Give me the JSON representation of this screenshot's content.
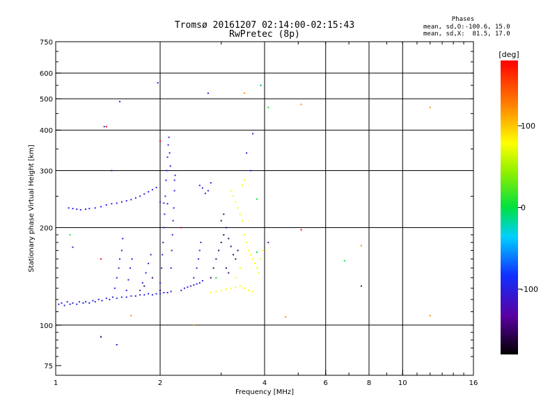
{
  "header": {
    "title_line1": "Tromsø 20161207 02:14:00-02:15:43",
    "title_line2": "RwPretec (8p)"
  },
  "phases_box": {
    "heading": "Phases",
    "stat_o": "mean, sd,O:-100.6, 15.0",
    "stat_x": "mean, sd,X:  81.5, 17.0"
  },
  "chart_data": {
    "type": "scatter",
    "xlabel": "Frequency [MHz]",
    "ylabel": "Stationary phase Virtual Height [km]",
    "x_scale": "log",
    "y_scale": "log",
    "xlim": [
      1,
      16
    ],
    "ylim": [
      70,
      750
    ],
    "x_ticks": [
      1,
      2,
      4,
      6,
      8,
      10,
      16
    ],
    "x_tick_labels": [
      "1",
      "2",
      "4",
      "6",
      "8",
      "10",
      "16"
    ],
    "x_grid_lines": [
      2,
      4,
      6,
      8,
      10
    ],
    "y_ticks": [
      75,
      100,
      200,
      300,
      400,
      500,
      600,
      750
    ],
    "y_tick_labels": [
      "75",
      "100",
      "200",
      "300",
      "400",
      "500",
      "600",
      "750"
    ],
    "y_grid_lines": [
      100,
      200,
      300,
      400,
      500,
      600
    ],
    "grid": true,
    "colorbar": {
      "label": "[deg]",
      "range": [
        -180,
        180
      ],
      "ticks": [
        100,
        0,
        -100
      ],
      "tick_labels": [
        "100",
        "0",
        "-100"
      ]
    },
    "series": [
      {
        "color_phase": -100,
        "points": [
          [
            1.02,
            116
          ],
          [
            1.04,
            117
          ],
          [
            1.06,
            115
          ],
          [
            1.08,
            118
          ],
          [
            1.1,
            116
          ],
          [
            1.12,
            117
          ],
          [
            1.15,
            116
          ],
          [
            1.17,
            118
          ],
          [
            1.2,
            117
          ],
          [
            1.22,
            118
          ],
          [
            1.25,
            117
          ],
          [
            1.28,
            119
          ],
          [
            1.3,
            118
          ],
          [
            1.33,
            120
          ],
          [
            1.36,
            119
          ],
          [
            1.4,
            121
          ],
          [
            1.43,
            120
          ],
          [
            1.46,
            122
          ],
          [
            1.5,
            121
          ],
          [
            1.55,
            122
          ],
          [
            1.6,
            122
          ],
          [
            1.65,
            123
          ],
          [
            1.7,
            123
          ],
          [
            1.75,
            124
          ],
          [
            1.8,
            124
          ],
          [
            1.85,
            125
          ],
          [
            1.9,
            124
          ],
          [
            1.95,
            125
          ],
          [
            2.0,
            125
          ],
          [
            2.05,
            126
          ],
          [
            2.1,
            126
          ],
          [
            2.15,
            127
          ],
          [
            1.09,
            230
          ],
          [
            1.12,
            229
          ],
          [
            1.15,
            228
          ],
          [
            1.18,
            227
          ],
          [
            1.22,
            228
          ],
          [
            1.25,
            229
          ],
          [
            1.3,
            230
          ],
          [
            1.35,
            232
          ],
          [
            1.4,
            235
          ],
          [
            1.45,
            237
          ],
          [
            1.5,
            238
          ],
          [
            1.55,
            240
          ],
          [
            1.6,
            242
          ],
          [
            1.65,
            244
          ],
          [
            1.7,
            247
          ],
          [
            1.75,
            250
          ],
          [
            1.8,
            254
          ],
          [
            1.85,
            258
          ],
          [
            1.9,
            262
          ],
          [
            1.95,
            266
          ],
          [
            2.0,
            240
          ],
          [
            2.05,
            238
          ],
          [
            2.1,
            237
          ],
          [
            1.48,
            130
          ],
          [
            1.5,
            140
          ],
          [
            1.52,
            150
          ],
          [
            1.53,
            160
          ],
          [
            1.55,
            170
          ],
          [
            1.56,
            185
          ],
          [
            1.6,
            128
          ],
          [
            1.62,
            138
          ],
          [
            1.64,
            150
          ],
          [
            1.66,
            160
          ],
          [
            1.75,
            128
          ],
          [
            1.78,
            135
          ],
          [
            1.82,
            145
          ],
          [
            1.85,
            155
          ],
          [
            1.88,
            165
          ],
          [
            2.0,
            135
          ],
          [
            2.02,
            150
          ],
          [
            2.03,
            165
          ],
          [
            2.04,
            180
          ],
          [
            2.05,
            200
          ],
          [
            2.06,
            220
          ],
          [
            2.07,
            250
          ],
          [
            2.08,
            280
          ],
          [
            2.09,
            300
          ],
          [
            2.1,
            330
          ],
          [
            2.11,
            360
          ],
          [
            2.12,
            380
          ],
          [
            2.13,
            340
          ],
          [
            2.14,
            310
          ],
          [
            2.15,
            150
          ],
          [
            2.16,
            170
          ],
          [
            2.17,
            190
          ],
          [
            2.18,
            210
          ],
          [
            2.19,
            230
          ],
          [
            2.2,
            260
          ],
          [
            2.21,
            290
          ],
          [
            2.3,
            128
          ],
          [
            2.35,
            130
          ],
          [
            2.4,
            131
          ],
          [
            2.45,
            132
          ],
          [
            2.5,
            133
          ],
          [
            2.55,
            134
          ],
          [
            2.6,
            135
          ],
          [
            2.65,
            137
          ],
          [
            2.5,
            140
          ],
          [
            2.55,
            150
          ],
          [
            2.58,
            160
          ],
          [
            2.6,
            170
          ],
          [
            2.62,
            180
          ],
          [
            2.6,
            270
          ],
          [
            2.65,
            265
          ],
          [
            2.7,
            255
          ],
          [
            2.75,
            260
          ],
          [
            2.8,
            275
          ],
          [
            1.12,
            174
          ],
          [
            1.35,
            92
          ],
          [
            1.5,
            87
          ],
          [
            1.45,
            300
          ],
          [
            1.38,
            410
          ],
          [
            1.53,
            490
          ],
          [
            1.97,
            560
          ],
          [
            2.75,
            520
          ],
          [
            3.55,
            340
          ],
          [
            3.7,
            390
          ],
          [
            3.65,
            300
          ],
          [
            3.9,
            550
          ],
          [
            2.2,
            280
          ]
        ]
      },
      {
        "color_phase": -150,
        "points": [
          [
            2.8,
            140
          ],
          [
            2.85,
            150
          ],
          [
            2.9,
            160
          ],
          [
            2.95,
            170
          ],
          [
            3.0,
            180
          ],
          [
            3.05,
            190
          ],
          [
            3.1,
            200
          ],
          [
            3.15,
            185
          ],
          [
            3.2,
            175
          ],
          [
            3.25,
            165
          ],
          [
            3.3,
            160
          ],
          [
            3.35,
            170
          ],
          [
            3.0,
            210
          ],
          [
            3.05,
            220
          ],
          [
            3.1,
            150
          ],
          [
            3.15,
            145
          ],
          [
            1.8,
            132
          ],
          [
            1.9,
            140
          ],
          [
            2.0,
            128
          ]
        ]
      },
      {
        "color_phase": 80,
        "points": [
          [
            2.8,
            126
          ],
          [
            2.9,
            127
          ],
          [
            3.0,
            128
          ],
          [
            3.1,
            129
          ],
          [
            3.2,
            130
          ],
          [
            3.3,
            131
          ],
          [
            3.4,
            132
          ],
          [
            3.5,
            130
          ],
          [
            3.6,
            128
          ],
          [
            3.7,
            127
          ],
          [
            3.2,
            260
          ],
          [
            3.25,
            250
          ],
          [
            3.3,
            240
          ],
          [
            3.35,
            230
          ],
          [
            3.4,
            220
          ],
          [
            3.45,
            210
          ],
          [
            3.5,
            190
          ],
          [
            3.55,
            180
          ],
          [
            3.6,
            170
          ],
          [
            3.65,
            165
          ],
          [
            3.7,
            160
          ],
          [
            3.75,
            155
          ],
          [
            3.8,
            150
          ],
          [
            3.85,
            145
          ],
          [
            3.9,
            160
          ],
          [
            3.95,
            170
          ],
          [
            3.5,
            280
          ],
          [
            3.45,
            270
          ],
          [
            3.4,
            150
          ],
          [
            3.3,
            140
          ]
        ]
      },
      {
        "color_phase": 120,
        "points": [
          [
            3.5,
            520
          ],
          [
            5.1,
            480
          ],
          [
            12.0,
            470
          ],
          [
            12.0,
            107
          ],
          [
            4.6,
            106
          ],
          [
            7.6,
            176
          ],
          [
            1.65,
            107
          ],
          [
            2.5,
            100
          ]
        ]
      },
      {
        "color_phase": 180,
        "points": [
          [
            1.35,
            160
          ],
          [
            2.0,
            370
          ],
          [
            5.1,
            197
          ],
          [
            2.3,
            200
          ],
          [
            1.4,
            410
          ]
        ]
      },
      {
        "color_phase": 0,
        "points": [
          [
            1.1,
            190
          ],
          [
            3.8,
            168
          ],
          [
            4.1,
            470
          ],
          [
            6.8,
            158
          ],
          [
            3.9,
            550
          ],
          [
            2.9,
            140
          ],
          [
            3.8,
            245
          ]
        ]
      },
      {
        "color_phase": -140,
        "points": [
          [
            7.6,
            132
          ],
          [
            4.1,
            180
          ],
          [
            1.35,
            92
          ]
        ]
      }
    ]
  }
}
